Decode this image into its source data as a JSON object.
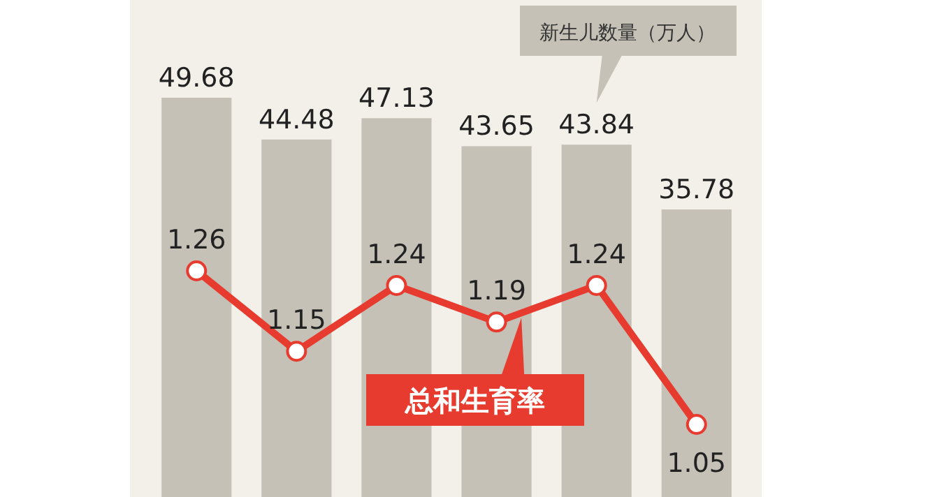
{
  "chart_data": [
    {
      "type": "bar",
      "categories": [
        null,
        null,
        null,
        null,
        null,
        null
      ],
      "data_labels": true,
      "legend": false,
      "series": [
        {
          "name": "新生儿数量（万人）",
          "color": "#c5c1b7",
          "values": [
            49.68,
            44.48,
            47.13,
            43.65,
            43.84,
            35.78
          ]
        }
      ]
    },
    {
      "type": "line",
      "categories": [
        null,
        null,
        null,
        null,
        null,
        null
      ],
      "data_labels": true,
      "legend": false,
      "marker": "circle",
      "series": [
        {
          "name": "总和生育率",
          "color": "#e63b2e",
          "values": [
            1.26,
            1.15,
            1.24,
            1.19,
            1.24,
            1.05
          ]
        }
      ]
    }
  ]
}
